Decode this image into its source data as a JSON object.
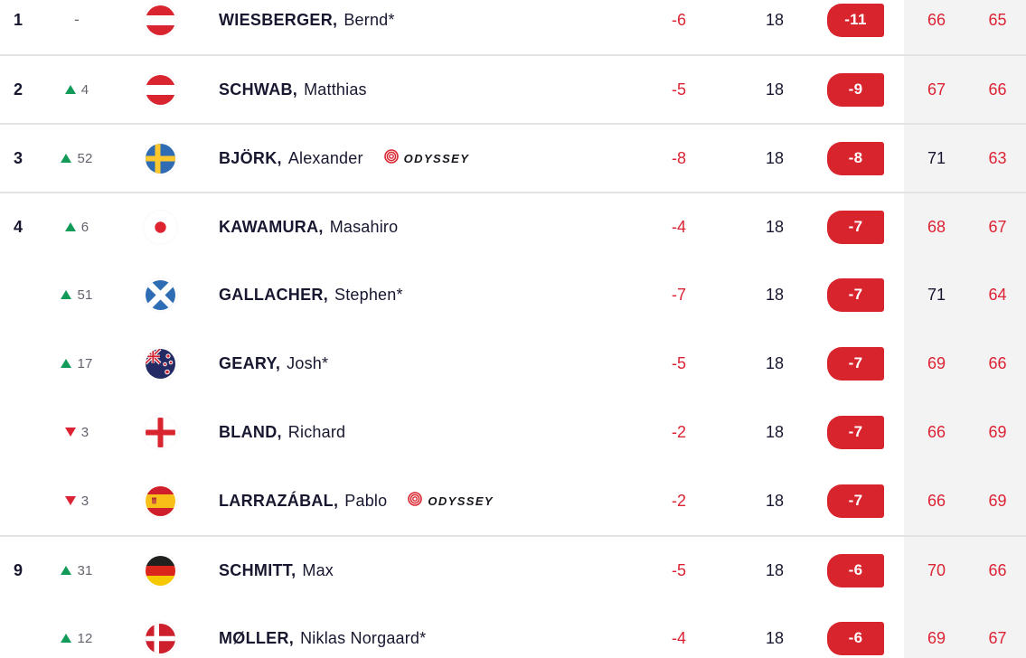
{
  "colors": {
    "ink": "#17172f",
    "red": "#dc2334",
    "badge": "#d7242d",
    "green": "#129b58",
    "move_text": "#63636e",
    "panel": "#f3f3f4",
    "divider": "#e3e3e6"
  },
  "sponsor_label": "ODYSSEY",
  "rows": [
    {
      "pos": "1",
      "move_dir": "none",
      "move": "-",
      "flag": "austria",
      "name_last": "WIESBERGER,",
      "name_first": "Bernd*",
      "sponsor": false,
      "score": "-6",
      "thru": "18",
      "total": "-11",
      "r1": "66",
      "r2": "65",
      "r1_tone": "red",
      "r2_tone": "red"
    },
    {
      "pos": "2",
      "move_dir": "up",
      "move": "4",
      "flag": "austria",
      "name_last": "SCHWAB,",
      "name_first": "Matthias",
      "sponsor": false,
      "score": "-5",
      "thru": "18",
      "total": "-9",
      "r1": "67",
      "r2": "66",
      "r1_tone": "red",
      "r2_tone": "red"
    },
    {
      "pos": "3",
      "move_dir": "up",
      "move": "52",
      "flag": "sweden",
      "name_last": "BJÖRK,",
      "name_first": "Alexander",
      "sponsor": true,
      "score": "-8",
      "thru": "18",
      "total": "-8",
      "r1": "71",
      "r2": "63",
      "r1_tone": "dark",
      "r2_tone": "red"
    },
    {
      "pos": "4",
      "move_dir": "up",
      "move": "6",
      "flag": "japan",
      "name_last": "KAWAMURA,",
      "name_first": "Masahiro",
      "sponsor": false,
      "score": "-4",
      "thru": "18",
      "total": "-7",
      "r1": "68",
      "r2": "67",
      "r1_tone": "red",
      "r2_tone": "red"
    },
    {
      "pos": "",
      "move_dir": "up",
      "move": "51",
      "flag": "scotland",
      "name_last": "GALLACHER,",
      "name_first": "Stephen*",
      "sponsor": false,
      "score": "-7",
      "thru": "18",
      "total": "-7",
      "r1": "71",
      "r2": "64",
      "r1_tone": "dark",
      "r2_tone": "red"
    },
    {
      "pos": "",
      "move_dir": "up",
      "move": "17",
      "flag": "new-zealand",
      "name_last": "GEARY,",
      "name_first": "Josh*",
      "sponsor": false,
      "score": "-5",
      "thru": "18",
      "total": "-7",
      "r1": "69",
      "r2": "66",
      "r1_tone": "red",
      "r2_tone": "red"
    },
    {
      "pos": "",
      "move_dir": "down",
      "move": "3",
      "flag": "england",
      "name_last": "BLAND,",
      "name_first": "Richard",
      "sponsor": false,
      "score": "-2",
      "thru": "18",
      "total": "-7",
      "r1": "66",
      "r2": "69",
      "r1_tone": "red",
      "r2_tone": "red"
    },
    {
      "pos": "",
      "move_dir": "down",
      "move": "3",
      "flag": "spain",
      "name_last": "LARRAZÁBAL,",
      "name_first": "Pablo",
      "sponsor": true,
      "score": "-2",
      "thru": "18",
      "total": "-7",
      "r1": "66",
      "r2": "69",
      "r1_tone": "red",
      "r2_tone": "red"
    },
    {
      "pos": "9",
      "move_dir": "up",
      "move": "31",
      "flag": "germany",
      "name_last": "SCHMITT,",
      "name_first": "Max",
      "sponsor": false,
      "score": "-5",
      "thru": "18",
      "total": "-6",
      "r1": "70",
      "r2": "66",
      "r1_tone": "red",
      "r2_tone": "red"
    },
    {
      "pos": "",
      "move_dir": "up",
      "move": "12",
      "flag": "denmark",
      "name_last": "MØLLER,",
      "name_first": "Niklas Norgaard*",
      "sponsor": false,
      "score": "-4",
      "thru": "18",
      "total": "-6",
      "r1": "69",
      "r2": "67",
      "r1_tone": "red",
      "r2_tone": "red"
    }
  ]
}
